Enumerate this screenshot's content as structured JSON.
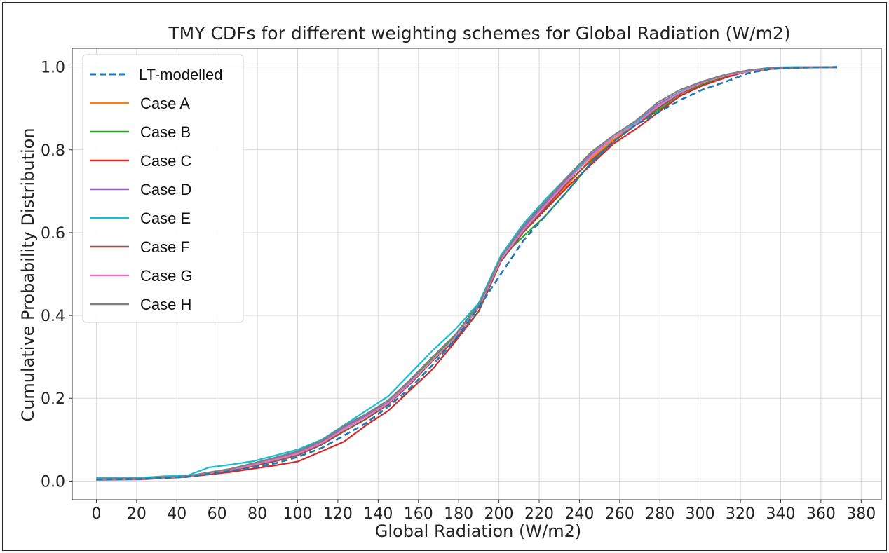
{
  "chart_data": {
    "type": "line",
    "title": "TMY CDFs for different weighting schemes for Global Radiation (W/m2)",
    "xlabel": "Global Radiation (W/m2)",
    "ylabel": "Cumulative Probability Distribution",
    "xlim": [
      -12,
      390
    ],
    "ylim": [
      -0.045,
      1.045
    ],
    "xticks": [
      0,
      20,
      40,
      60,
      80,
      100,
      120,
      140,
      160,
      180,
      200,
      220,
      240,
      260,
      280,
      300,
      320,
      340,
      360,
      380
    ],
    "xtick_labels": [
      "0",
      "20",
      "40",
      "60",
      "80",
      "100",
      "120",
      "140",
      "160",
      "180",
      "200",
      "220",
      "240",
      "260",
      "280",
      "300",
      "320",
      "340",
      "360",
      "380"
    ],
    "yticks": [
      0.0,
      0.2,
      0.4,
      0.6,
      0.8,
      1.0
    ],
    "ytick_labels": [
      "0.0",
      "0.2",
      "0.4",
      "0.6",
      "0.8",
      "1.0"
    ],
    "grid": true,
    "legend_position": "top-left",
    "series": [
      {
        "name": "LT-modelled",
        "color": "#1f77b4",
        "dashed": true,
        "x": [
          0,
          22,
          45,
          56,
          67,
          78,
          89,
          100,
          112,
          123,
          134,
          145,
          156,
          167,
          178,
          190,
          201,
          212,
          223,
          234,
          246,
          257,
          268,
          279,
          290,
          301,
          313,
          324,
          335,
          346,
          357,
          368
        ],
        "y": [
          0.004,
          0.005,
          0.01,
          0.017,
          0.025,
          0.033,
          0.043,
          0.058,
          0.08,
          0.11,
          0.14,
          0.18,
          0.225,
          0.28,
          0.34,
          0.42,
          0.5,
          0.58,
          0.64,
          0.7,
          0.77,
          0.82,
          0.86,
          0.89,
          0.92,
          0.945,
          0.965,
          0.985,
          0.995,
          0.998,
          0.999,
          1.0
        ]
      },
      {
        "name": "Case A",
        "color": "#ff7f0e",
        "dashed": false,
        "x": [
          0,
          22,
          45,
          56,
          67,
          78,
          89,
          100,
          112,
          123,
          134,
          145,
          156,
          167,
          178,
          190,
          201,
          212,
          223,
          234,
          246,
          257,
          268,
          279,
          290,
          301,
          313,
          324,
          335,
          346,
          357,
          368
        ],
        "y": [
          0.004,
          0.005,
          0.011,
          0.02,
          0.027,
          0.038,
          0.05,
          0.064,
          0.09,
          0.125,
          0.155,
          0.188,
          0.235,
          0.29,
          0.345,
          0.42,
          0.535,
          0.6,
          0.655,
          0.715,
          0.78,
          0.825,
          0.86,
          0.9,
          0.935,
          0.96,
          0.98,
          0.99,
          0.998,
          0.999,
          1.0,
          1.0
        ]
      },
      {
        "name": "Case B",
        "color": "#2ca02c",
        "dashed": false,
        "x": [
          0,
          22,
          45,
          56,
          67,
          78,
          89,
          100,
          112,
          123,
          134,
          145,
          156,
          167,
          178,
          190,
          201,
          212,
          223,
          234,
          246,
          257,
          268,
          279,
          290,
          301,
          313,
          324,
          335,
          346,
          357,
          368
        ],
        "y": [
          0.004,
          0.005,
          0.011,
          0.02,
          0.028,
          0.04,
          0.053,
          0.068,
          0.095,
          0.13,
          0.16,
          0.19,
          0.24,
          0.295,
          0.35,
          0.43,
          0.54,
          0.59,
          0.64,
          0.7,
          0.77,
          0.82,
          0.86,
          0.895,
          0.93,
          0.958,
          0.978,
          0.99,
          0.998,
          0.999,
          1.0,
          1.0
        ]
      },
      {
        "name": "Case C",
        "color": "#d62728",
        "dashed": false,
        "x": [
          0,
          22,
          45,
          56,
          67,
          78,
          89,
          100,
          112,
          123,
          134,
          145,
          156,
          167,
          178,
          190,
          201,
          212,
          223,
          234,
          246,
          257,
          268,
          279,
          290,
          301,
          313,
          324,
          335,
          346,
          357,
          368
        ],
        "y": [
          0.003,
          0.004,
          0.01,
          0.016,
          0.022,
          0.03,
          0.038,
          0.047,
          0.072,
          0.095,
          0.135,
          0.17,
          0.22,
          0.27,
          0.335,
          0.41,
          0.535,
          0.6,
          0.655,
          0.71,
          0.765,
          0.815,
          0.85,
          0.89,
          0.93,
          0.955,
          0.975,
          0.99,
          0.995,
          0.998,
          0.999,
          0.999
        ]
      },
      {
        "name": "Case D",
        "color": "#9467bd",
        "dashed": false,
        "x": [
          0,
          22,
          45,
          56,
          67,
          78,
          89,
          100,
          112,
          123,
          134,
          145,
          156,
          167,
          178,
          190,
          201,
          212,
          223,
          234,
          246,
          257,
          268,
          279,
          290,
          301,
          313,
          324,
          335,
          346,
          357,
          368
        ],
        "y": [
          0.005,
          0.006,
          0.012,
          0.02,
          0.029,
          0.042,
          0.055,
          0.07,
          0.095,
          0.13,
          0.158,
          0.19,
          0.24,
          0.29,
          0.345,
          0.42,
          0.54,
          0.61,
          0.67,
          0.73,
          0.79,
          0.83,
          0.865,
          0.91,
          0.94,
          0.965,
          0.982,
          0.992,
          0.998,
          0.999,
          1.0,
          1.0
        ]
      },
      {
        "name": "Case E",
        "color": "#17becf",
        "dashed": false,
        "x": [
          0,
          22,
          34,
          45,
          56,
          67,
          78,
          89,
          100,
          112,
          123,
          134,
          145,
          156,
          167,
          178,
          190,
          201,
          212,
          223,
          234,
          246,
          257,
          268,
          279,
          290,
          301,
          313,
          324,
          335,
          346,
          357,
          368
        ],
        "y": [
          0.008,
          0.008,
          0.012,
          0.013,
          0.033,
          0.04,
          0.048,
          0.062,
          0.076,
          0.1,
          0.135,
          0.17,
          0.205,
          0.26,
          0.315,
          0.365,
          0.43,
          0.545,
          0.62,
          0.68,
          0.735,
          0.785,
          0.83,
          0.865,
          0.905,
          0.94,
          0.962,
          0.98,
          0.99,
          0.999,
          1.0,
          1.0,
          1.0
        ]
      },
      {
        "name": "Case F",
        "color": "#8c564b",
        "dashed": false,
        "x": [
          0,
          22,
          45,
          56,
          67,
          78,
          89,
          100,
          112,
          123,
          134,
          145,
          156,
          167,
          178,
          190,
          201,
          212,
          223,
          234,
          246,
          257,
          268,
          279,
          290,
          301,
          313,
          324,
          335,
          346,
          357,
          368
        ],
        "y": [
          0.004,
          0.005,
          0.01,
          0.018,
          0.025,
          0.036,
          0.048,
          0.062,
          0.088,
          0.12,
          0.15,
          0.185,
          0.235,
          0.29,
          0.34,
          0.41,
          0.53,
          0.6,
          0.66,
          0.72,
          0.775,
          0.82,
          0.86,
          0.9,
          0.935,
          0.962,
          0.98,
          0.99,
          0.996,
          0.998,
          0.999,
          0.999
        ]
      },
      {
        "name": "Case G",
        "color": "#e377c2",
        "dashed": false,
        "x": [
          0,
          22,
          45,
          56,
          67,
          78,
          89,
          100,
          112,
          123,
          134,
          145,
          156,
          167,
          178,
          190,
          201,
          212,
          223,
          234,
          246,
          257,
          268,
          279,
          290,
          301,
          313,
          324,
          335,
          346,
          357,
          368
        ],
        "y": [
          0.004,
          0.005,
          0.011,
          0.019,
          0.027,
          0.039,
          0.052,
          0.066,
          0.092,
          0.125,
          0.155,
          0.188,
          0.238,
          0.292,
          0.345,
          0.42,
          0.535,
          0.605,
          0.665,
          0.725,
          0.785,
          0.83,
          0.862,
          0.905,
          0.938,
          0.962,
          0.98,
          0.99,
          0.997,
          0.999,
          1.0,
          1.0
        ]
      },
      {
        "name": "Case H",
        "color": "#7f7f7f",
        "dashed": false,
        "x": [
          0,
          22,
          45,
          56,
          67,
          78,
          89,
          100,
          112,
          123,
          134,
          145,
          156,
          167,
          178,
          190,
          201,
          212,
          223,
          234,
          246,
          257,
          268,
          279,
          290,
          301,
          313,
          324,
          335,
          346,
          357,
          368
        ],
        "y": [
          0.005,
          0.006,
          0.012,
          0.021,
          0.03,
          0.043,
          0.057,
          0.072,
          0.098,
          0.133,
          0.162,
          0.195,
          0.245,
          0.3,
          0.352,
          0.425,
          0.54,
          0.615,
          0.675,
          0.735,
          0.795,
          0.835,
          0.87,
          0.915,
          0.945,
          0.965,
          0.982,
          0.992,
          0.998,
          0.999,
          1.0,
          1.0
        ]
      }
    ]
  }
}
